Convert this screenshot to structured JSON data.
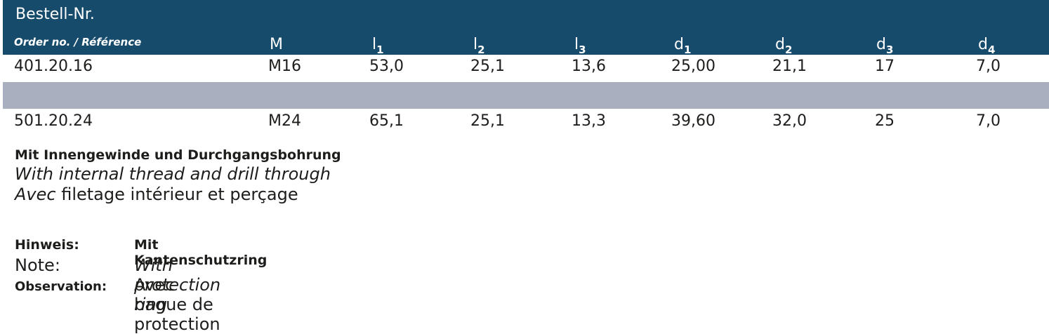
{
  "table": {
    "title": "Bestell-Nr.",
    "subtitle": "Order no. / Référence",
    "columns": [
      {
        "main": "M",
        "sub": ""
      },
      {
        "main": "l",
        "sub": "1"
      },
      {
        "main": "l",
        "sub": "2"
      },
      {
        "main": "l",
        "sub": "3"
      },
      {
        "main": "d",
        "sub": "1"
      },
      {
        "main": "d",
        "sub": "2"
      },
      {
        "main": "d",
        "sub": "3"
      },
      {
        "main": "d",
        "sub": "4"
      }
    ],
    "rows": [
      [
        "401.20.16",
        "M16",
        "53,0",
        "25,1",
        "13,6",
        "25,00",
        "21,1",
        "17",
        "7,0"
      ],
      [
        "501.20.24",
        "M24",
        "65,1",
        "25,1",
        "13,3",
        "39,60",
        "32,0",
        "25",
        "7,0"
      ]
    ]
  },
  "description": {
    "de": "Mit Innengewinde und Durchgangsbohrung",
    "en": "With internal thread and drill through",
    "fr_italic": "Avec",
    "fr_rest": " filetage intérieur et perçage"
  },
  "note": {
    "hinweis_label": "Hinweis:",
    "hinweis_value": "Mit Kantenschutzring",
    "note_label": "Note:",
    "note_value": "With protection ring",
    "observation_label": "Observation:",
    "observation_value": "Avec bague de protection"
  }
}
